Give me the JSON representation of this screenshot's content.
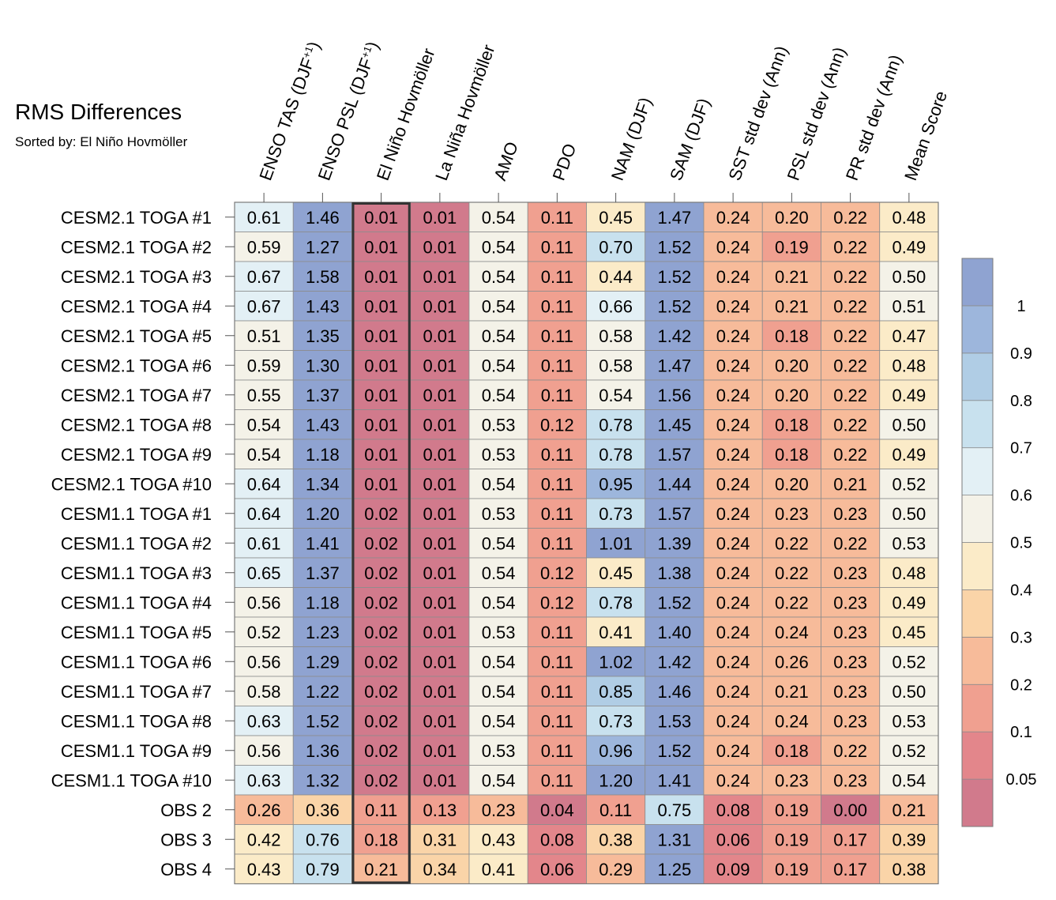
{
  "chart_data": {
    "type": "heatmap",
    "title": "RMS Differences",
    "subtitle": "Sorted by: El Niño Hovmöller",
    "columns": [
      "ENSO TAS (DJF+1)",
      "ENSO PSL (DJF+1)",
      "El Niño Hovmöller",
      "La Niña Hovmöller",
      "AMO",
      "PDO",
      "NAM (DJF)",
      "SAM (DJF)",
      "SST std dev (Ann)",
      "PSL std dev (Ann)",
      "PR std dev (Ann)",
      "Mean Score"
    ],
    "column_display": [
      {
        "base": "ENSO TAS (DJF",
        "sup": "+1",
        "tail": ")"
      },
      {
        "base": "ENSO PSL (DJF",
        "sup": "+1",
        "tail": ")"
      },
      {
        "base": "El Niño Hovmöller",
        "sup": "",
        "tail": ""
      },
      {
        "base": "La Niña Hovmöller",
        "sup": "",
        "tail": ""
      },
      {
        "base": "AMO",
        "sup": "",
        "tail": ""
      },
      {
        "base": "PDO",
        "sup": "",
        "tail": ""
      },
      {
        "base": "NAM (DJF)",
        "sup": "",
        "tail": ""
      },
      {
        "base": "SAM (DJF)",
        "sup": "",
        "tail": ""
      },
      {
        "base": "SST std dev (Ann)",
        "sup": "",
        "tail": ""
      },
      {
        "base": "PSL std dev (Ann)",
        "sup": "",
        "tail": ""
      },
      {
        "base": "PR std dev (Ann)",
        "sup": "",
        "tail": ""
      },
      {
        "base": "Mean Score",
        "sup": "",
        "tail": ""
      }
    ],
    "rows": [
      "CESM2.1 TOGA #1",
      "CESM2.1 TOGA #2",
      "CESM2.1 TOGA #3",
      "CESM2.1 TOGA #4",
      "CESM2.1 TOGA #5",
      "CESM2.1 TOGA #6",
      "CESM2.1 TOGA #7",
      "CESM2.1 TOGA #8",
      "CESM2.1 TOGA #9",
      "CESM2.1 TOGA #10",
      "CESM1.1 TOGA #1",
      "CESM1.1 TOGA #2",
      "CESM1.1 TOGA #3",
      "CESM1.1 TOGA #4",
      "CESM1.1 TOGA #5",
      "CESM1.1 TOGA #6",
      "CESM1.1 TOGA #7",
      "CESM1.1 TOGA #8",
      "CESM1.1 TOGA #9",
      "CESM1.1 TOGA #10",
      "OBS 2",
      "OBS 3",
      "OBS 4"
    ],
    "values": [
      [
        "0.61",
        "1.46",
        "0.01",
        "0.01",
        "0.54",
        "0.11",
        "0.45",
        "1.47",
        "0.24",
        "0.20",
        "0.22",
        "0.48"
      ],
      [
        "0.59",
        "1.27",
        "0.01",
        "0.01",
        "0.54",
        "0.11",
        "0.70",
        "1.52",
        "0.24",
        "0.19",
        "0.22",
        "0.49"
      ],
      [
        "0.67",
        "1.58",
        "0.01",
        "0.01",
        "0.54",
        "0.11",
        "0.44",
        "1.52",
        "0.24",
        "0.21",
        "0.22",
        "0.50"
      ],
      [
        "0.67",
        "1.43",
        "0.01",
        "0.01",
        "0.54",
        "0.11",
        "0.66",
        "1.52",
        "0.24",
        "0.21",
        "0.22",
        "0.51"
      ],
      [
        "0.51",
        "1.35",
        "0.01",
        "0.01",
        "0.54",
        "0.11",
        "0.58",
        "1.42",
        "0.24",
        "0.18",
        "0.22",
        "0.47"
      ],
      [
        "0.59",
        "1.30",
        "0.01",
        "0.01",
        "0.54",
        "0.11",
        "0.58",
        "1.47",
        "0.24",
        "0.20",
        "0.22",
        "0.48"
      ],
      [
        "0.55",
        "1.37",
        "0.01",
        "0.01",
        "0.54",
        "0.11",
        "0.54",
        "1.56",
        "0.24",
        "0.20",
        "0.22",
        "0.49"
      ],
      [
        "0.54",
        "1.43",
        "0.01",
        "0.01",
        "0.53",
        "0.12",
        "0.78",
        "1.45",
        "0.24",
        "0.18",
        "0.22",
        "0.50"
      ],
      [
        "0.54",
        "1.18",
        "0.01",
        "0.01",
        "0.53",
        "0.11",
        "0.78",
        "1.57",
        "0.24",
        "0.18",
        "0.22",
        "0.49"
      ],
      [
        "0.64",
        "1.34",
        "0.01",
        "0.01",
        "0.54",
        "0.11",
        "0.95",
        "1.44",
        "0.24",
        "0.20",
        "0.21",
        "0.52"
      ],
      [
        "0.64",
        "1.20",
        "0.02",
        "0.01",
        "0.53",
        "0.11",
        "0.73",
        "1.57",
        "0.24",
        "0.23",
        "0.23",
        "0.50"
      ],
      [
        "0.61",
        "1.41",
        "0.02",
        "0.01",
        "0.54",
        "0.11",
        "1.01",
        "1.39",
        "0.24",
        "0.22",
        "0.22",
        "0.53"
      ],
      [
        "0.65",
        "1.37",
        "0.02",
        "0.01",
        "0.54",
        "0.12",
        "0.45",
        "1.38",
        "0.24",
        "0.22",
        "0.23",
        "0.48"
      ],
      [
        "0.56",
        "1.18",
        "0.02",
        "0.01",
        "0.54",
        "0.12",
        "0.78",
        "1.52",
        "0.24",
        "0.22",
        "0.23",
        "0.49"
      ],
      [
        "0.52",
        "1.23",
        "0.02",
        "0.01",
        "0.53",
        "0.11",
        "0.41",
        "1.40",
        "0.24",
        "0.24",
        "0.23",
        "0.45"
      ],
      [
        "0.56",
        "1.29",
        "0.02",
        "0.01",
        "0.54",
        "0.11",
        "1.02",
        "1.42",
        "0.24",
        "0.26",
        "0.23",
        "0.52"
      ],
      [
        "0.58",
        "1.22",
        "0.02",
        "0.01",
        "0.54",
        "0.11",
        "0.85",
        "1.46",
        "0.24",
        "0.21",
        "0.23",
        "0.50"
      ],
      [
        "0.63",
        "1.52",
        "0.02",
        "0.01",
        "0.54",
        "0.11",
        "0.73",
        "1.53",
        "0.24",
        "0.24",
        "0.23",
        "0.53"
      ],
      [
        "0.56",
        "1.36",
        "0.02",
        "0.01",
        "0.53",
        "0.11",
        "0.96",
        "1.52",
        "0.24",
        "0.18",
        "0.22",
        "0.52"
      ],
      [
        "0.63",
        "1.32",
        "0.02",
        "0.01",
        "0.54",
        "0.11",
        "1.20",
        "1.41",
        "0.24",
        "0.23",
        "0.23",
        "0.54"
      ],
      [
        "0.26",
        "0.36",
        "0.11",
        "0.13",
        "0.23",
        "0.04",
        "0.11",
        "0.75",
        "0.08",
        "0.19",
        "0.00",
        "0.21"
      ],
      [
        "0.42",
        "0.76",
        "0.18",
        "0.31",
        "0.43",
        "0.08",
        "0.38",
        "1.31",
        "0.06",
        "0.19",
        "0.17",
        "0.39"
      ],
      [
        "0.43",
        "0.79",
        "0.21",
        "0.34",
        "0.41",
        "0.06",
        "0.29",
        "1.25",
        "0.09",
        "0.19",
        "0.17",
        "0.38"
      ]
    ],
    "sorted_column": "El Niño Hovmöller",
    "colorbar": {
      "levels": [
        "0.05",
        "0.1",
        "0.2",
        "0.3",
        "0.4",
        "0.5",
        "0.6",
        "0.7",
        "0.8",
        "0.9",
        "1"
      ],
      "colors": [
        "#d17a8c",
        "#e3868b",
        "#f0a090",
        "#f7bb9a",
        "#fad4a8",
        "#fbebc8",
        "#f4f2e8",
        "#e3f0f5",
        "#c8e1ee",
        "#b0cde5",
        "#9db6dc",
        "#8fa3d1"
      ]
    }
  }
}
